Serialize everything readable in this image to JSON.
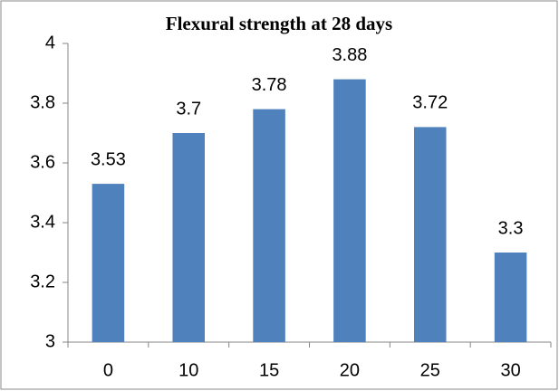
{
  "chart_data": {
    "type": "bar",
    "title": "Flexural strength at 28 days",
    "categories": [
      "0",
      "10",
      "15",
      "20",
      "25",
      "30"
    ],
    "values": [
      3.53,
      3.7,
      3.78,
      3.88,
      3.72,
      3.3
    ],
    "color": "#4f81bd",
    "ylim": [
      3,
      4
    ],
    "yticks": [
      3,
      3.2,
      3.4,
      3.6,
      3.8,
      4
    ],
    "grid": false
  }
}
